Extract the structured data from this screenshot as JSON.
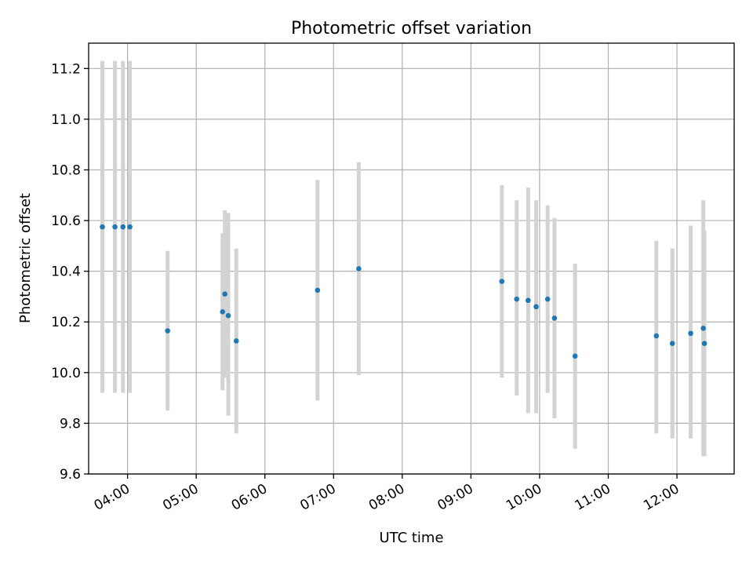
{
  "chart_data": {
    "type": "scatter",
    "title": "Photometric offset variation",
    "xlabel": "UTC time",
    "ylabel": "Photometric offset",
    "grid": true,
    "xlim": [
      "03:26",
      "12:50"
    ],
    "ylim": [
      9.6,
      11.3
    ],
    "xticks": [
      "04:00",
      "05:00",
      "06:00",
      "07:00",
      "08:00",
      "09:00",
      "10:00",
      "11:00",
      "12:00"
    ],
    "yticks": [
      "9.6",
      "9.8",
      "10.0",
      "10.2",
      "10.4",
      "10.6",
      "10.8",
      "11.0",
      "11.2"
    ],
    "point_color": "#1f77b4",
    "errorbar_color": "#d3d3d3",
    "points": [
      {
        "t": "03:38",
        "y": 10.575,
        "lo": 9.92,
        "hi": 11.23
      },
      {
        "t": "03:49",
        "y": 10.575,
        "lo": 9.92,
        "hi": 11.23
      },
      {
        "t": "03:56",
        "y": 10.575,
        "lo": 9.92,
        "hi": 11.23
      },
      {
        "t": "04:02",
        "y": 10.575,
        "lo": 9.92,
        "hi": 11.23
      },
      {
        "t": "04:35",
        "y": 10.165,
        "lo": 9.85,
        "hi": 10.48
      },
      {
        "t": "05:23",
        "y": 10.24,
        "lo": 9.93,
        "hi": 10.55
      },
      {
        "t": "05:25",
        "y": 10.31,
        "lo": 9.98,
        "hi": 10.64
      },
      {
        "t": "05:28",
        "y": 10.225,
        "lo": 9.83,
        "hi": 10.63
      },
      {
        "t": "05:35",
        "y": 10.125,
        "lo": 9.76,
        "hi": 10.49
      },
      {
        "t": "06:46",
        "y": 10.325,
        "lo": 9.89,
        "hi": 10.76
      },
      {
        "t": "07:22",
        "y": 10.41,
        "lo": 9.99,
        "hi": 10.83
      },
      {
        "t": "09:27",
        "y": 10.36,
        "lo": 9.98,
        "hi": 10.74
      },
      {
        "t": "09:40",
        "y": 10.29,
        "lo": 9.91,
        "hi": 10.68
      },
      {
        "t": "09:50",
        "y": 10.285,
        "lo": 9.84,
        "hi": 10.73
      },
      {
        "t": "09:57",
        "y": 10.26,
        "lo": 9.84,
        "hi": 10.68
      },
      {
        "t": "10:07",
        "y": 10.29,
        "lo": 9.92,
        "hi": 10.66
      },
      {
        "t": "10:13",
        "y": 10.215,
        "lo": 9.82,
        "hi": 10.61
      },
      {
        "t": "10:31",
        "y": 10.065,
        "lo": 9.7,
        "hi": 10.43
      },
      {
        "t": "11:42",
        "y": 10.145,
        "lo": 9.76,
        "hi": 10.52
      },
      {
        "t": "11:56",
        "y": 10.115,
        "lo": 9.74,
        "hi": 10.49
      },
      {
        "t": "12:12",
        "y": 10.155,
        "lo": 9.74,
        "hi": 10.58
      },
      {
        "t": "12:23",
        "y": 10.175,
        "lo": 9.67,
        "hi": 10.68
      },
      {
        "t": "12:24",
        "y": 10.115,
        "lo": 9.67,
        "hi": 10.56
      }
    ]
  }
}
